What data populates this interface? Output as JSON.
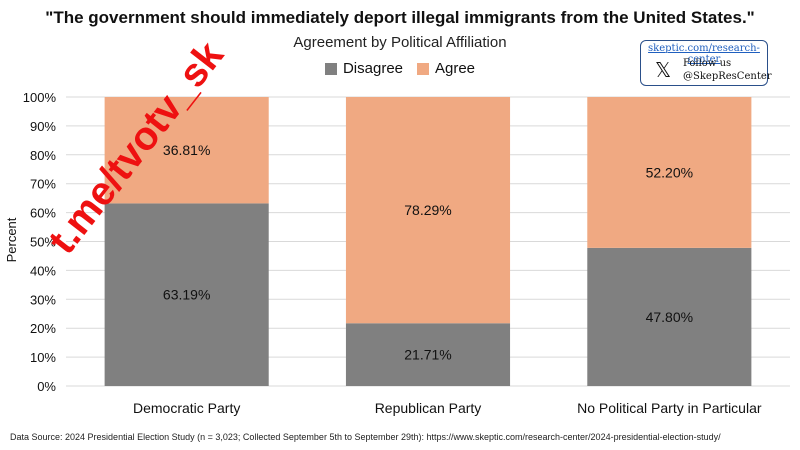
{
  "header": {
    "title": "\"The government should immediately deport illegal immigrants from the United States.\"",
    "subtitle": "Agreement by Political Affiliation"
  },
  "badge": {
    "url": "skeptic.com/research-center",
    "follow_label": "Follow us",
    "handle": "@SkepResCenter",
    "icon": "x-logo-icon"
  },
  "watermark": "t.me/tvotv_sk",
  "footer": {
    "text": "Data Source: 2024 Presidential Election Study (n = 3,023; Collected September 5th to September 29th): https://www.skeptic.com/research-center/2024-presidential-election-study/"
  },
  "colors": {
    "disagree": "#808080",
    "agree": "#F0A982",
    "grid": "#d9d9d9"
  },
  "chart_data": {
    "type": "bar",
    "stacked": true,
    "categories": [
      "Democratic Party",
      "Republican Party",
      "No Political Party in Particular"
    ],
    "series": [
      {
        "name": "Disagree",
        "values": [
          63.19,
          21.71,
          47.8
        ],
        "labels": [
          "63.19%",
          "21.71%",
          "47.80%"
        ]
      },
      {
        "name": "Agree",
        "values": [
          36.81,
          78.29,
          52.2
        ],
        "labels": [
          "36.81%",
          "78.29%",
          "52.20%"
        ]
      }
    ],
    "ylabel": "Percent",
    "ylim": [
      0,
      100
    ],
    "yticks": [
      0,
      10,
      20,
      30,
      40,
      50,
      60,
      70,
      80,
      90,
      100
    ],
    "ytick_labels": [
      "0%",
      "10%",
      "20%",
      "30%",
      "40%",
      "50%",
      "60%",
      "70%",
      "80%",
      "90%",
      "100%"
    ],
    "grid": true,
    "legend": "top-center"
  }
}
